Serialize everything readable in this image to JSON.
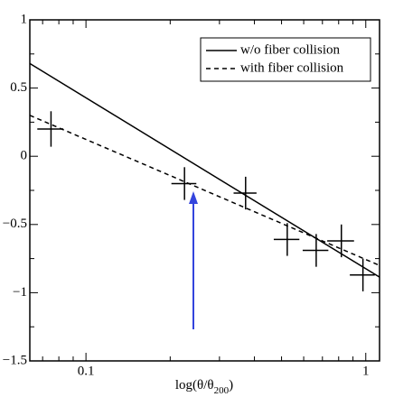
{
  "chart_data": {
    "type": "scatter",
    "xlabel": {
      "base": "log(θ/θ",
      "sub": "200",
      "tail": ")"
    },
    "xscale": "log",
    "xlim": [
      0.063,
      1.12
    ],
    "ylim": [
      -1.5,
      1
    ],
    "xticks": [
      0.1,
      1
    ],
    "xminor_ticks": [
      0.07,
      0.08,
      0.09,
      0.2,
      0.3,
      0.4,
      0.5,
      0.6,
      0.7,
      0.8,
      0.9
    ],
    "yticks": [
      {
        "value": -1.5,
        "label": "−1.5"
      },
      {
        "value": -1,
        "label": "−1"
      },
      {
        "value": -0.5,
        "label": "−0.5"
      },
      0,
      0.5,
      1
    ],
    "yminor_ticks": [
      -1.25,
      -0.75,
      -0.25,
      0.25,
      0.75
    ],
    "legend": "upper right",
    "lines": [
      {
        "name": "w/o fiber collision",
        "dash": "solid",
        "color": "#000000",
        "x": [
          0.063,
          1.12
        ],
        "values": [
          0.68,
          -0.886
        ]
      },
      {
        "name": "with fiber collision",
        "dash": "dashed",
        "color": "#000000",
        "x": [
          0.063,
          1.12
        ],
        "values": [
          0.3,
          -0.8
        ]
      }
    ],
    "points": {
      "color": "#000000",
      "x": [
        0.075,
        0.225,
        0.372,
        0.524,
        0.665,
        0.818,
        0.977
      ],
      "values": [
        0.2,
        -0.2,
        -0.27,
        -0.61,
        -0.69,
        -0.62,
        -0.87
      ],
      "xerr": [
        0.008,
        0.023,
        0.035,
        0.055,
        0.07,
        0.09,
        0.1
      ],
      "yerr": [
        0.13,
        0.12,
        0.12,
        0.12,
        0.12,
        0.12,
        0.12
      ]
    }
  }
}
